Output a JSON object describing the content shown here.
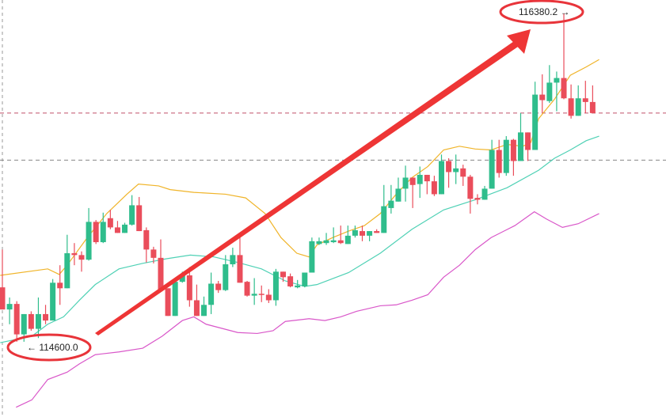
{
  "chart_data": {
    "type": "candlestick",
    "title": "",
    "xlabel": "",
    "ylabel": "",
    "ylim": [
      114192,
      116453
    ],
    "grid": false,
    "colors": {
      "up": "#2fbd8c",
      "down": "#ea4d5b",
      "upper_band": "#f0b429",
      "middle_band": "#4fd1b5",
      "lower_band": "#d957c9",
      "annotation": "#ee3535"
    },
    "candles": [
      [
        114895,
        115100,
        114775,
        114775
      ],
      [
        114775,
        114840,
        114695,
        114805
      ],
      [
        114805,
        114820,
        114600,
        114640
      ],
      [
        114640,
        114750,
        114600,
        114750
      ],
      [
        114750,
        114765,
        114660,
        114670
      ],
      [
        114670,
        114840,
        114620,
        114750
      ],
      [
        114750,
        114800,
        114695,
        114715
      ],
      [
        114715,
        114940,
        114715,
        114920
      ],
      [
        114920,
        115015,
        114800,
        114890
      ],
      [
        114890,
        115180,
        114890,
        115080
      ],
      [
        115080,
        115135,
        115015,
        115070
      ],
      [
        115070,
        115090,
        114980,
        115045
      ],
      [
        115045,
        115325,
        115040,
        115250
      ],
      [
        115250,
        115260,
        115130,
        115140
      ],
      [
        115140,
        115300,
        115135,
        115250
      ],
      [
        115270,
        115315,
        115210,
        115220
      ],
      [
        115220,
        115255,
        115190,
        115190
      ],
      [
        115190,
        115245,
        115190,
        115235
      ],
      [
        115235,
        115395,
        115230,
        115340
      ],
      [
        115340,
        115385,
        115200,
        115200
      ],
      [
        115205,
        115220,
        115030,
        115100
      ],
      [
        115100,
        115115,
        115025,
        115055
      ],
      [
        115055,
        115155,
        114885,
        114885
      ],
      [
        114890,
        114890,
        114740,
        114740
      ],
      [
        114740,
        114925,
        114740,
        114925
      ],
      [
        114925,
        114980,
        114920,
        114960
      ],
      [
        114960,
        115005,
        114790,
        114825
      ],
      [
        114825,
        114910,
        114740,
        114740
      ],
      [
        114740,
        114845,
        114740,
        114800
      ],
      [
        114800,
        114975,
        114750,
        114915
      ],
      [
        114915,
        114930,
        114865,
        114880
      ],
      [
        114880,
        115070,
        114875,
        115020
      ],
      [
        115020,
        115110,
        115005,
        115070
      ],
      [
        115070,
        115180,
        114920,
        114920
      ],
      [
        114925,
        114930,
        114845,
        114850
      ],
      [
        114850,
        114945,
        114800,
        114860
      ],
      [
        114860,
        114905,
        114815,
        114855
      ],
      [
        114855,
        114885,
        114810,
        114825
      ],
      [
        114825,
        114995,
        114795,
        114980
      ],
      [
        114980,
        114980,
        114925,
        114950
      ],
      [
        114955,
        114970,
        114895,
        114900
      ],
      [
        114895,
        114935,
        114890,
        114905
      ],
      [
        114900,
        114975,
        114895,
        114975
      ],
      [
        114975,
        115165,
        114975,
        115145
      ],
      [
        115130,
        115165,
        115125,
        115145
      ],
      [
        115135,
        115190,
        115125,
        115150
      ],
      [
        115140,
        115220,
        115135,
        115150
      ],
      [
        115150,
        115230,
        115130,
        115135
      ],
      [
        115130,
        115230,
        115130,
        115175
      ],
      [
        115175,
        115230,
        115165,
        115205
      ],
      [
        115200,
        115230,
        115145,
        115175
      ],
      [
        115175,
        115200,
        115145,
        115200
      ],
      [
        115200,
        115210,
        115190,
        115190
      ],
      [
        115190,
        115450,
        115190,
        115335
      ],
      [
        115325,
        115450,
        115295,
        115365
      ],
      [
        115360,
        115490,
        115360,
        115430
      ],
      [
        115430,
        115555,
        115360,
        115490
      ],
      [
        115490,
        115490,
        115325,
        115450
      ],
      [
        115455,
        115550,
        115380,
        115505
      ],
      [
        115505,
        115505,
        115400,
        115470
      ],
      [
        115470,
        115500,
        115390,
        115400
      ],
      [
        115400,
        115615,
        115400,
        115580
      ],
      [
        115580,
        115595,
        115435,
        115520
      ],
      [
        115520,
        115615,
        115455,
        115540
      ],
      [
        115540,
        115560,
        115445,
        115495
      ],
      [
        115495,
        115505,
        115295,
        115375
      ],
      [
        115380,
        115400,
        115345,
        115370
      ],
      [
        115370,
        115445,
        115370,
        115430
      ],
      [
        115430,
        115695,
        115430,
        115640
      ],
      [
        115640,
        115695,
        115490,
        115515
      ],
      [
        115515,
        115715,
        115500,
        115695
      ],
      [
        115695,
        115700,
        115500,
        115580
      ],
      [
        115580,
        115840,
        115580,
        115735
      ],
      [
        115735,
        115735,
        115580,
        115640
      ],
      [
        115640,
        116010,
        115640,
        115940
      ],
      [
        115940,
        116050,
        115840,
        115910
      ],
      [
        115905,
        116100,
        115895,
        116005
      ],
      [
        116005,
        116065,
        115850,
        116030
      ],
      [
        116030,
        116380,
        115915,
        115920
      ],
      [
        115920,
        115995,
        115810,
        115825
      ],
      [
        115825,
        115990,
        115825,
        115920
      ],
      [
        115920,
        116015,
        115840,
        115900
      ],
      [
        115900,
        115990,
        115840,
        115840
      ]
    ],
    "candle_format": [
      "open",
      "high",
      "low",
      "close"
    ],
    "upper_band": [
      [
        -0.3,
        114960
      ],
      [
        6.3,
        114995
      ],
      [
        7.9,
        114965
      ],
      [
        9.0,
        115015
      ],
      [
        11.8,
        115165
      ],
      [
        14.5,
        115295
      ],
      [
        17.3,
        115400
      ],
      [
        18.9,
        115455
      ],
      [
        21.7,
        115445
      ],
      [
        23.3,
        115425
      ],
      [
        26.6,
        115410
      ],
      [
        31.0,
        115400
      ],
      [
        33.8,
        115380
      ],
      [
        36.5,
        115295
      ],
      [
        38.7,
        115165
      ],
      [
        40.9,
        115080
      ],
      [
        42.6,
        115060
      ],
      [
        43.7,
        115125
      ],
      [
        45.9,
        115165
      ],
      [
        48.1,
        115200
      ],
      [
        50.3,
        115230
      ],
      [
        52.5,
        115295
      ],
      [
        54.7,
        115400
      ],
      [
        56.9,
        115490
      ],
      [
        59.1,
        115550
      ],
      [
        61.3,
        115640
      ],
      [
        63.5,
        115660
      ],
      [
        65.7,
        115645
      ],
      [
        67.9,
        115640
      ],
      [
        70.1,
        115670
      ],
      [
        72.3,
        115660
      ],
      [
        73.4,
        115680
      ],
      [
        74.5,
        115810
      ],
      [
        76.7,
        115915
      ],
      [
        78.9,
        116045
      ],
      [
        81.1,
        116090
      ],
      [
        82.9,
        116130
      ]
    ],
    "middle_band": [
      [
        -0.3,
        114595
      ],
      [
        4.1,
        114630
      ],
      [
        6.3,
        114695
      ],
      [
        8.5,
        114735
      ],
      [
        10.7,
        114825
      ],
      [
        12.9,
        114910
      ],
      [
        16.2,
        114995
      ],
      [
        19.5,
        115025
      ],
      [
        22.8,
        115050
      ],
      [
        26.1,
        115070
      ],
      [
        29.4,
        115060
      ],
      [
        32.7,
        115030
      ],
      [
        36.0,
        114995
      ],
      [
        39.3,
        114930
      ],
      [
        42.0,
        114900
      ],
      [
        43.7,
        114910
      ],
      [
        48.1,
        114975
      ],
      [
        52.5,
        115080
      ],
      [
        56.9,
        115210
      ],
      [
        61.3,
        115315
      ],
      [
        65.7,
        115370
      ],
      [
        70.1,
        115435
      ],
      [
        74.5,
        115530
      ],
      [
        76.7,
        115595
      ],
      [
        78.9,
        115640
      ],
      [
        81.1,
        115690
      ],
      [
        82.9,
        115715
      ]
    ],
    "lower_band": [
      [
        1.9,
        114245
      ],
      [
        4.1,
        114285
      ],
      [
        6.3,
        114395
      ],
      [
        9.0,
        114435
      ],
      [
        10.7,
        114480
      ],
      [
        12.9,
        114530
      ],
      [
        16.2,
        114545
      ],
      [
        19.5,
        114565
      ],
      [
        22.2,
        114630
      ],
      [
        25.0,
        114715
      ],
      [
        26.6,
        114735
      ],
      [
        28.3,
        114695
      ],
      [
        32.7,
        114650
      ],
      [
        35.4,
        114645
      ],
      [
        37.6,
        114660
      ],
      [
        39.3,
        114710
      ],
      [
        42.6,
        114725
      ],
      [
        44.8,
        114715
      ],
      [
        47.0,
        114735
      ],
      [
        49.2,
        114765
      ],
      [
        52.5,
        114795
      ],
      [
        54.7,
        114800
      ],
      [
        56.9,
        114825
      ],
      [
        59.1,
        114855
      ],
      [
        61.3,
        114950
      ],
      [
        63.5,
        115015
      ],
      [
        65.7,
        115100
      ],
      [
        67.9,
        115165
      ],
      [
        71.2,
        115230
      ],
      [
        73.9,
        115305
      ],
      [
        75.6,
        115265
      ],
      [
        77.8,
        115220
      ],
      [
        80.0,
        115240
      ],
      [
        82.9,
        115295
      ]
    ],
    "horizontal_lines": [
      {
        "price": 115840,
        "color": "#c0506a"
      },
      {
        "price": 115585,
        "color": "#888888"
      }
    ],
    "annotations": {
      "low_label": "← 114600.0",
      "high_label": "116380.2 →",
      "low_price": 114600,
      "high_price": 116380.2
    }
  }
}
